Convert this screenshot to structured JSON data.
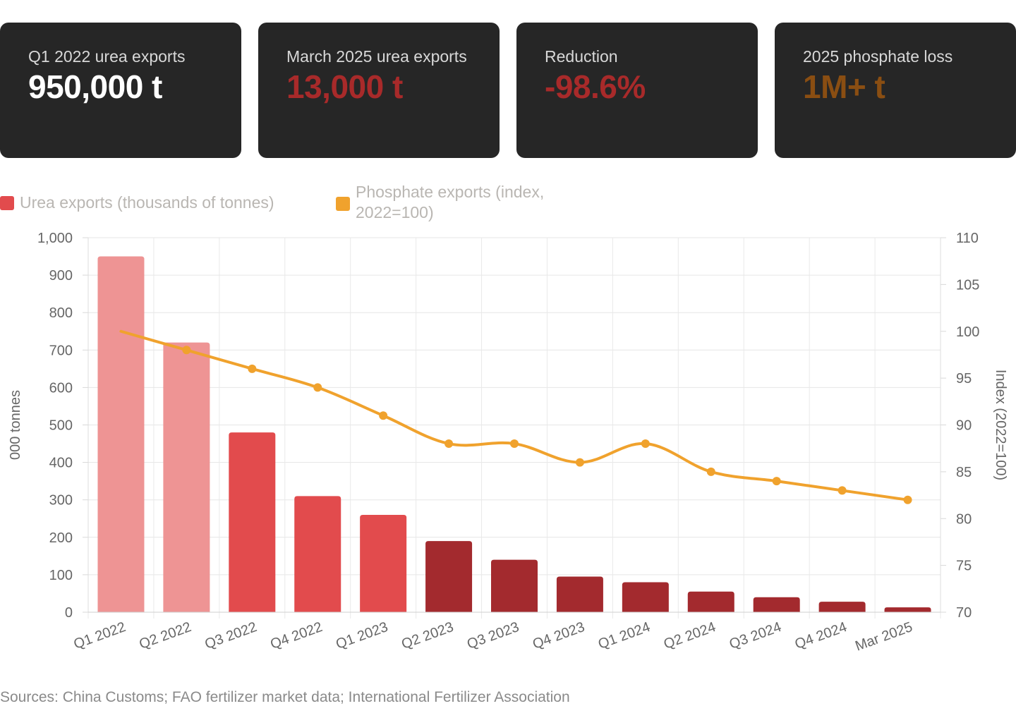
{
  "cards": [
    {
      "label": "Q1 2022 urea exports",
      "value": "950,000 t"
    },
    {
      "label": "March 2025 urea exports",
      "value": "13,000 t"
    },
    {
      "label": "Reduction",
      "value": "-98.6%"
    },
    {
      "label": "2025 phosphate loss",
      "value": "1M+ t"
    }
  ],
  "colors": {
    "card_bg": "#262626",
    "value_white": "#ffffff",
    "value_red": "#a82a2a",
    "value_brown": "#8a4e12",
    "bar_light": "#ee9494",
    "bar_mid": "#e24b4d",
    "bar_dark": "#a32a2e",
    "line": "#f0a22d"
  },
  "chart_data": {
    "type": "bar",
    "categories": [
      "Q1 2022",
      "Q2 2022",
      "Q3 2022",
      "Q4 2022",
      "Q1 2023",
      "Q2 2023",
      "Q3 2023",
      "Q4 2023",
      "Q1 2024",
      "Q2 2024",
      "Q3 2024",
      "Q4 2024",
      "Mar 2025"
    ],
    "series": [
      {
        "name": "Urea exports (thousands of tonnes)",
        "type": "bar",
        "axis": "left",
        "values": [
          950,
          720,
          480,
          310,
          260,
          190,
          140,
          95,
          80,
          55,
          40,
          28,
          13
        ],
        "color_groups": [
          "light",
          "light",
          "mid",
          "mid",
          "mid",
          "dark",
          "dark",
          "dark",
          "dark",
          "dark",
          "dark",
          "dark",
          "dark"
        ]
      },
      {
        "name": "Phosphate exports (index, 2022=100)",
        "type": "line",
        "axis": "right",
        "values": [
          100,
          98,
          96,
          94,
          91,
          88,
          88,
          86,
          88,
          85,
          84,
          83,
          82
        ]
      }
    ],
    "ylabel": "000 tonnes",
    "y2label": "Index (2022=100)",
    "ylim": [
      0,
      1000
    ],
    "y2lim": [
      70,
      110
    ],
    "yticks": [
      "0",
      "100",
      "200",
      "300",
      "400",
      "500",
      "600",
      "700",
      "800",
      "900",
      "1,000"
    ],
    "y2ticks": [
      "70",
      "75",
      "80",
      "85",
      "90",
      "95",
      "100",
      "105",
      "110"
    ],
    "grid": true,
    "legend": "top-left"
  },
  "legend": {
    "urea": "Urea exports (thousands of tonnes)",
    "phosphate": "Phosphate exports (index, 2022=100)"
  },
  "source": "Sources: China Customs; FAO fertilizer market data; International Fertilizer Association"
}
